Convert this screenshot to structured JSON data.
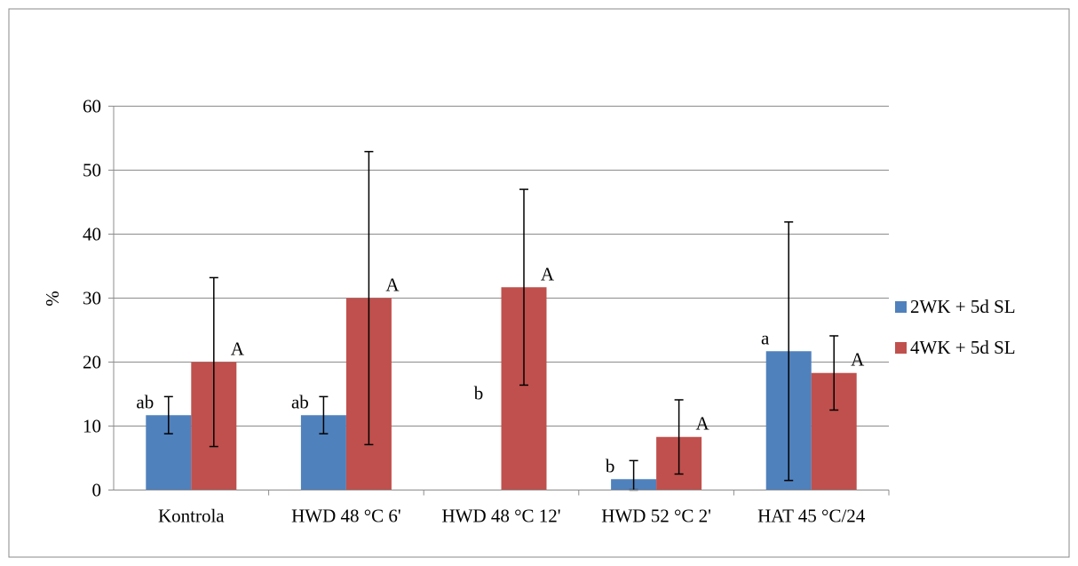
{
  "chart_data": {
    "type": "bar",
    "title": "",
    "xlabel": "",
    "ylabel": "%",
    "ylim": [
      0,
      60
    ],
    "yticks": [
      "0",
      "10",
      "20",
      "30",
      "40",
      "50",
      "60"
    ],
    "grid": "horizontal",
    "legend_position": "right",
    "categories": [
      "Kontrola",
      "HWD 48 °C 6'",
      "HWD 48 °C 12'",
      "HWD 52 °C 2'",
      "HAT 45 °C/24"
    ],
    "series": [
      {
        "name": "2WK + 5d SL",
        "color": "#4f81bd",
        "values": [
          11.7,
          11.7,
          0,
          1.7,
          21.7
        ],
        "error": [
          2.9,
          2.9,
          0,
          2.9,
          20.2
        ],
        "letters": [
          "ab",
          "ab",
          "b",
          "b",
          "a"
        ]
      },
      {
        "name": "4WK + 5d SL",
        "color": "#c0504d",
        "values": [
          20,
          30,
          31.7,
          8.3,
          18.3
        ],
        "error": [
          13.2,
          22.9,
          15.3,
          5.8,
          5.8
        ],
        "letters": [
          "A",
          "A",
          "A",
          "A",
          "A"
        ]
      }
    ]
  }
}
